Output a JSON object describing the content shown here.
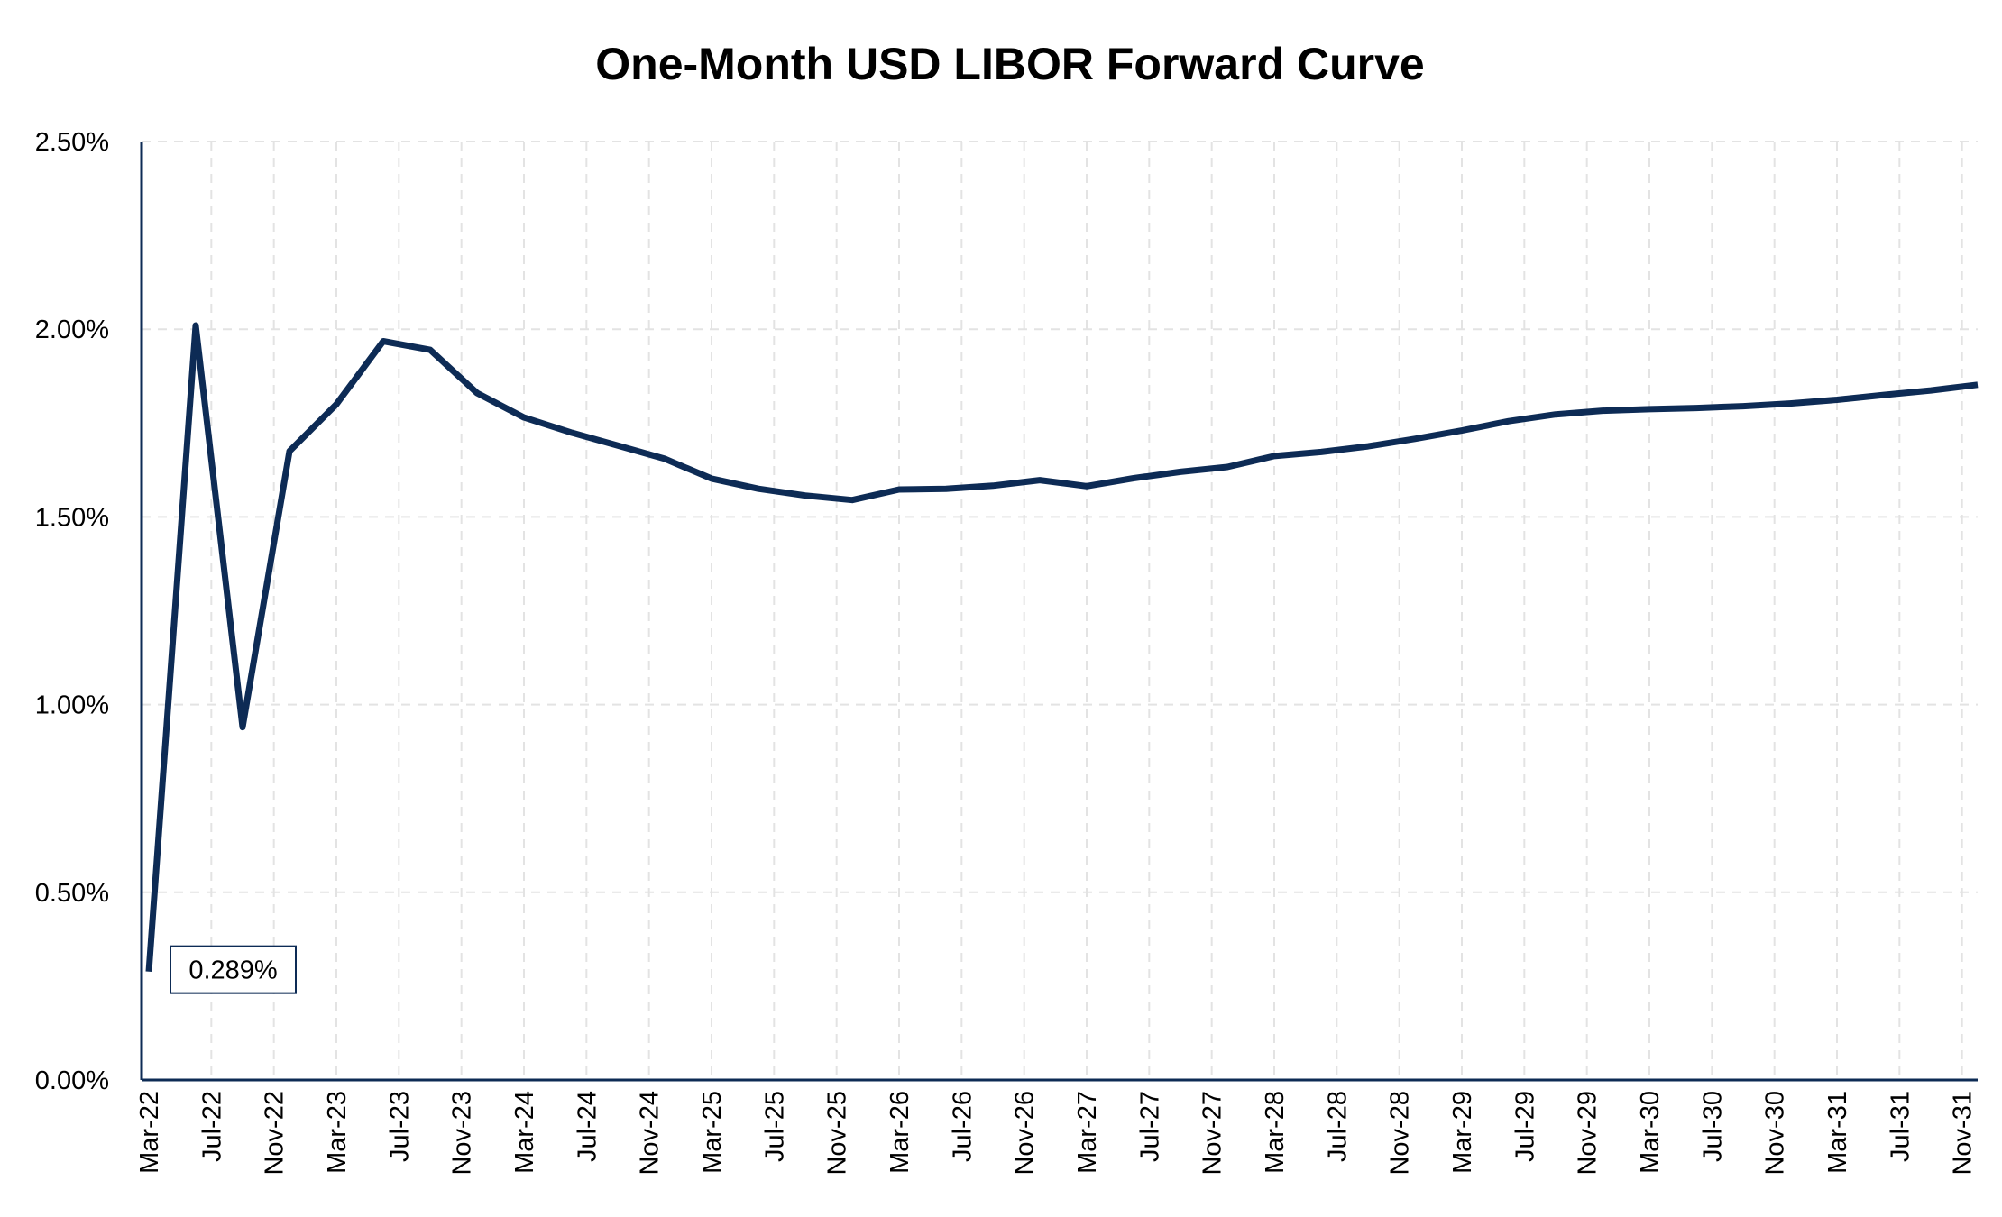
{
  "chart_data": {
    "type": "line",
    "title": "One-Month USD LIBOR Forward Curve",
    "xlabel": "",
    "ylabel": "",
    "ylim": [
      0,
      0.025
    ],
    "y_ticks": [
      0,
      0.005,
      0.01,
      0.015,
      0.02,
      0.025
    ],
    "y_tick_labels": [
      "0.00%",
      "0.50%",
      "1.00%",
      "1.50%",
      "2.00%",
      "2.50%"
    ],
    "x_range": [
      "2022-03",
      "2031-12"
    ],
    "x_ticks": [
      "2022-03",
      "2022-07",
      "2022-11",
      "2023-03",
      "2023-07",
      "2023-11",
      "2024-03",
      "2024-07",
      "2024-11",
      "2025-03",
      "2025-07",
      "2025-11",
      "2026-03",
      "2026-07",
      "2026-11",
      "2027-03",
      "2027-07",
      "2027-11",
      "2028-03",
      "2028-07",
      "2028-11",
      "2029-03",
      "2029-07",
      "2029-11",
      "2030-03",
      "2030-07",
      "2030-11",
      "2031-03",
      "2031-07",
      "2031-11"
    ],
    "x_tick_labels": [
      "Mar-22",
      "Jul-22",
      "Nov-22",
      "Mar-23",
      "Jul-23",
      "Nov-23",
      "Mar-24",
      "Jul-24",
      "Nov-24",
      "Mar-25",
      "Jul-25",
      "Nov-25",
      "Mar-26",
      "Jul-26",
      "Nov-26",
      "Mar-27",
      "Jul-27",
      "Nov-27",
      "Mar-28",
      "Jul-28",
      "Nov-28",
      "Mar-29",
      "Jul-29",
      "Nov-29",
      "Mar-30",
      "Jul-30",
      "Nov-30",
      "Mar-31",
      "Jul-31",
      "Nov-31"
    ],
    "grid": true,
    "line_color": "#0d2b55",
    "series": [
      {
        "x": [
          "2022-03",
          "2022-06",
          "2022-09",
          "2022-12",
          "2023-03",
          "2023-06",
          "2023-09",
          "2023-12",
          "2024-03",
          "2024-06",
          "2024-09",
          "2024-12",
          "2025-03",
          "2025-06",
          "2025-09",
          "2025-12",
          "2026-03",
          "2026-06",
          "2026-09",
          "2026-12",
          "2027-03",
          "2027-06",
          "2027-09",
          "2027-12",
          "2028-03",
          "2028-06",
          "2028-09",
          "2028-12",
          "2029-03",
          "2029-06",
          "2029-09",
          "2029-12",
          "2030-03",
          "2030-06",
          "2030-09",
          "2030-12",
          "2031-03",
          "2031-06",
          "2031-09",
          "2031-12"
        ],
        "values": [
          0.00289,
          0.0201,
          0.0094,
          0.01675,
          0.018,
          0.01968,
          0.01945,
          0.0183,
          0.01765,
          0.01725,
          0.0169,
          0.01655,
          0.01602,
          0.01575,
          0.01557,
          0.01545,
          0.01573,
          0.01575,
          0.01583,
          0.01598,
          0.01582,
          0.01603,
          0.0162,
          0.01633,
          0.01662,
          0.01673,
          0.01688,
          0.01708,
          0.0173,
          0.01755,
          0.01773,
          0.01783,
          0.01787,
          0.0179,
          0.01795,
          0.01802,
          0.01812,
          0.01825,
          0.01837,
          0.01852
        ]
      }
    ],
    "annotation": {
      "text": "0.289%",
      "x": "2022-03",
      "value": 0.00289
    }
  }
}
